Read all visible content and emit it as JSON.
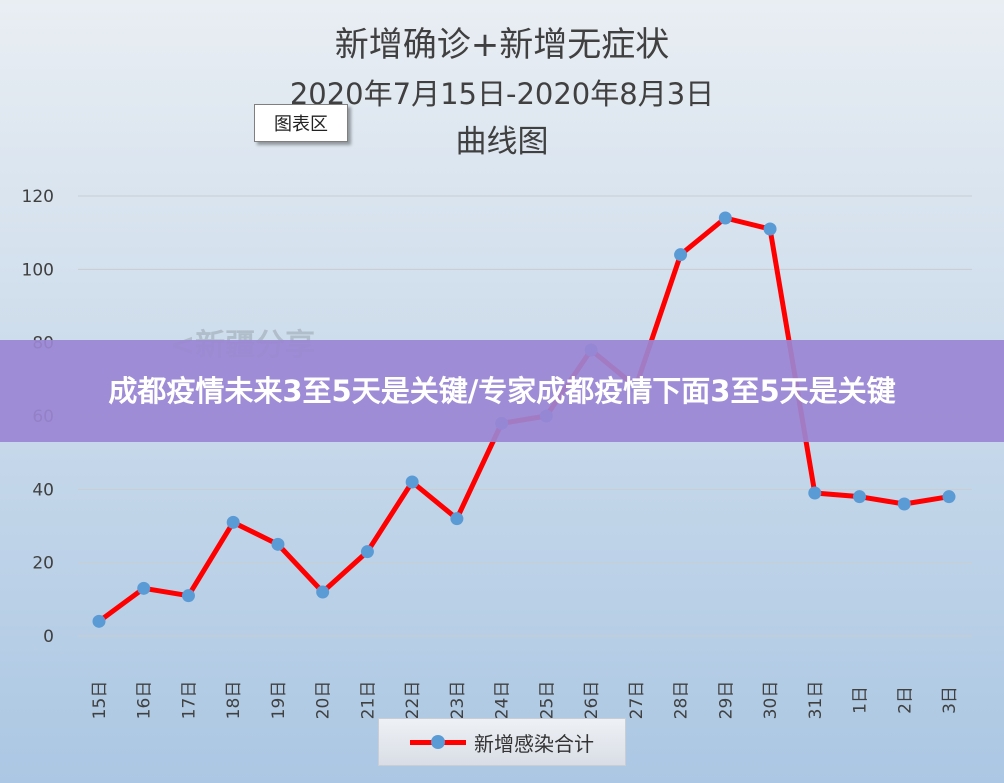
{
  "overlay": {
    "headline": "成都疫情未来3至5天是关键/专家成都疫情下面3至5天是关键"
  },
  "annotation": {
    "chart_area_label": "图表区"
  },
  "watermark": {
    "text": "<新疆分享"
  },
  "colors": {
    "line": "#ff0000",
    "marker": "#5b9bd5",
    "background_top": "#dfe6ee",
    "background_bottom": "#adc8e2",
    "banner": "#9a86d4"
  },
  "chart_data": {
    "type": "line",
    "title": "新增确诊+新增无症状",
    "subtitle": "2020年7月15日-2020年8月3日",
    "subtitle2": "曲线图",
    "categories": [
      "15日",
      "16日",
      "17日",
      "18日",
      "19日",
      "20日",
      "21日",
      "22日",
      "23日",
      "24日",
      "25日",
      "26日",
      "27日",
      "28日",
      "29日",
      "30日",
      "31日",
      "1日",
      "2日",
      "3日"
    ],
    "series": [
      {
        "name": "新增感染合计",
        "values": [
          4,
          13,
          11,
          31,
          25,
          12,
          23,
          42,
          32,
          58,
          60,
          78,
          68,
          104,
          114,
          111,
          39,
          38,
          36,
          38
        ]
      }
    ],
    "ylim": [
      0,
      120
    ],
    "yticks": [
      0,
      20,
      40,
      60,
      80,
      100,
      120
    ],
    "grid": true,
    "legend_position": "bottom"
  }
}
